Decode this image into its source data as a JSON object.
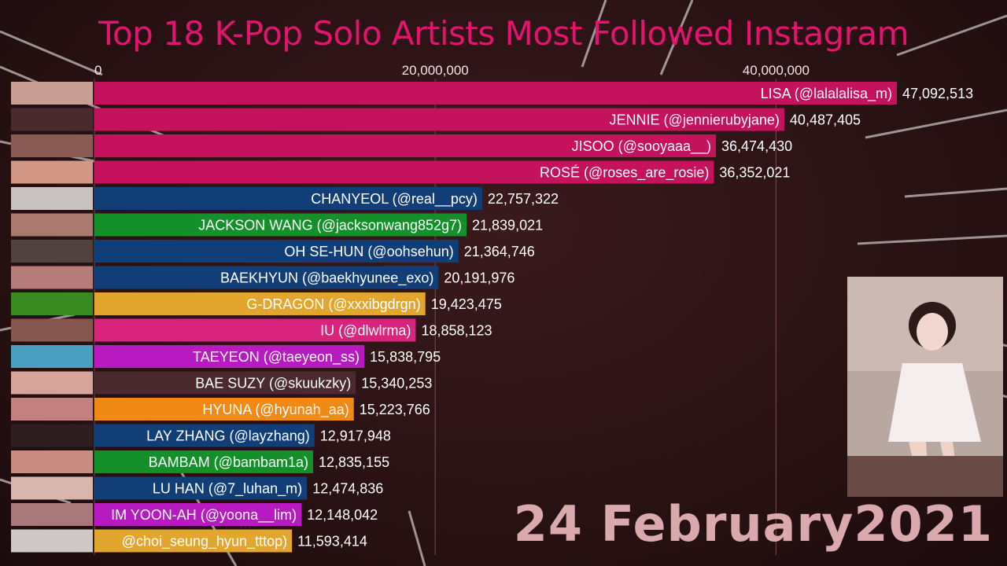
{
  "title": "Top 18 K-Pop Solo Artists Most Followed Instagram",
  "date_label": "24 February2021",
  "chart_data": {
    "type": "bar",
    "orientation": "horizontal",
    "title": "Top 18 K-Pop Solo Artists Most Followed Instagram",
    "xlim": [
      0,
      47092513
    ],
    "x_ticks": [
      0,
      20000000,
      40000000
    ],
    "x_tick_labels": [
      "0",
      "20,000,000",
      "40,000,000"
    ],
    "grid": true,
    "categories": [
      "LISA (@lalalalisa_m)",
      "JENNIE (@jennierubyjane)",
      "JISOO (@sooyaaa__)",
      "ROSÉ (@roses_are_rosie)",
      "CHANYEOL (@real__pcy)",
      "JACKSON WANG (@jacksonwang852g7)",
      "OH SE-HUN (@oohsehun)",
      "BAEKHYUN (@baekhyunee_exo)",
      "G-DRAGON (@xxxibgdrgn)",
      "IU (@dlwlrma)",
      "TAEYEON (@taeyeon_ss)",
      "BAE SUZY (@skuukzky)",
      "HYUNA (@hyunah_aa)",
      "LAY ZHANG (@layzhang)",
      "BAMBAM (@bambam1a)",
      "LU HAN (@7_luhan_m)",
      "IM YOON-AH (@yoona__lim)",
      "@choi_seung_hyun_tttop)"
    ],
    "values": [
      47092513,
      40487405,
      36474430,
      36352021,
      22757322,
      21839021,
      21364746,
      20191976,
      19423475,
      18858123,
      15838795,
      15340253,
      15223766,
      12917948,
      12835155,
      12474836,
      12148042,
      11593414
    ],
    "value_labels": [
      "47,092,513",
      "40,487,405",
      "36,474,430",
      "36,352,021",
      "22,757,322",
      "21,839,021",
      "21,364,746",
      "20,191,976",
      "19,423,475",
      "18,858,123",
      "15,838,795",
      "15,340,253",
      "15,223,766",
      "12,917,948",
      "12,835,155",
      "12,474,836",
      "12,148,042",
      "11,593,414"
    ],
    "colors": [
      "#c4125d",
      "#c4125d",
      "#c4125d",
      "#c4125d",
      "#123e78",
      "#14902a",
      "#123e78",
      "#123e78",
      "#e2a62e",
      "#d8247c",
      "#b61ac0",
      "#4a2a2c",
      "#f08a14",
      "#123e78",
      "#14902a",
      "#123e78",
      "#b61ac0",
      "#e2a62e"
    ],
    "avatar_colors": [
      "#c99e94",
      "#4a2a2e",
      "#8a5a54",
      "#d29684",
      "#c8c2c0",
      "#aa7a6e",
      "#52423e",
      "#b67c7a",
      "#3a8a22",
      "#84564e",
      "#4aa0c0",
      "#d6a49a",
      "#c28080",
      "#2e1e22",
      "#c88c80",
      "#d8b6ae",
      "#a8787a",
      "#cfc8c6"
    ]
  }
}
